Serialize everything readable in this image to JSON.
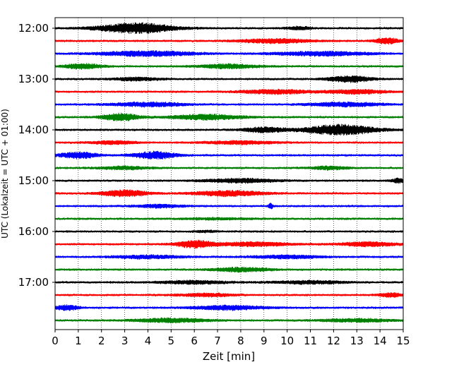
{
  "chart_data": {
    "type": "line",
    "xlabel": "Zeit  [min]",
    "ylabel": "UTC (Lokalzeit = UTC + 01:00)",
    "xlim": [
      0,
      15
    ],
    "x_ticks": [
      0,
      1,
      2,
      3,
      4,
      5,
      6,
      7,
      8,
      9,
      10,
      11,
      12,
      13,
      14,
      15
    ],
    "x_tick_labels": [
      "0",
      "1",
      "2",
      "3",
      "4",
      "5",
      "6",
      "7",
      "8",
      "9",
      "10",
      "11",
      "12",
      "13",
      "14",
      "15"
    ],
    "y_tick_labels": [
      "12:00",
      "13:00",
      "14:00",
      "15:00",
      "16:00",
      "17:00"
    ],
    "y_tick_rows": [
      0,
      4,
      8,
      12,
      16,
      20
    ],
    "grid": "vertical dotted",
    "color_cycle": [
      "#000000",
      "#ff0000",
      "#0000ff",
      "#008000"
    ],
    "traces": [
      {
        "start": "12:00",
        "color": "#000000",
        "bursts": [
          [
            3.5,
            1.6,
            1.0
          ],
          [
            10.5,
            0.5,
            0.3
          ]
        ]
      },
      {
        "start": "12:15",
        "color": "#ff0000",
        "bursts": [
          [
            9.5,
            1.5,
            0.4
          ],
          [
            14.3,
            0.5,
            0.6
          ]
        ]
      },
      {
        "start": "12:30",
        "color": "#0000ff",
        "bursts": [
          [
            4.0,
            2.0,
            0.5
          ],
          [
            11.5,
            2.0,
            0.4
          ]
        ]
      },
      {
        "start": "12:45",
        "color": "#008000",
        "bursts": [
          [
            1.2,
            0.8,
            0.5
          ],
          [
            7.5,
            1.2,
            0.4
          ]
        ]
      },
      {
        "start": "13:00",
        "color": "#000000",
        "bursts": [
          [
            12.7,
            0.9,
            0.6
          ],
          [
            3.5,
            1.0,
            0.3
          ]
        ]
      },
      {
        "start": "13:15",
        "color": "#ff0000",
        "bursts": [
          [
            9.5,
            1.5,
            0.4
          ],
          [
            13.0,
            1.2,
            0.4
          ]
        ]
      },
      {
        "start": "13:30",
        "color": "#0000ff",
        "bursts": [
          [
            4.0,
            1.5,
            0.4
          ],
          [
            12.5,
            1.5,
            0.4
          ]
        ]
      },
      {
        "start": "13:45",
        "color": "#008000",
        "bursts": [
          [
            2.8,
            0.8,
            0.7
          ],
          [
            6.5,
            1.5,
            0.5
          ]
        ]
      },
      {
        "start": "14:00",
        "color": "#000000",
        "bursts": [
          [
            12.3,
            1.5,
            1.0
          ],
          [
            9.0,
            0.9,
            0.5
          ]
        ]
      },
      {
        "start": "14:15",
        "color": "#ff0000",
        "bursts": [
          [
            2.5,
            1.0,
            0.3
          ],
          [
            8.0,
            1.5,
            0.3
          ]
        ]
      },
      {
        "start": "14:30",
        "color": "#0000ff",
        "bursts": [
          [
            1.0,
            0.8,
            0.6
          ],
          [
            4.3,
            0.9,
            0.7
          ]
        ]
      },
      {
        "start": "14:45",
        "color": "#008000",
        "bursts": [
          [
            3.0,
            1.0,
            0.3
          ],
          [
            11.8,
            0.8,
            0.3
          ]
        ]
      },
      {
        "start": "15:00",
        "color": "#000000",
        "bursts": [
          [
            8.0,
            1.5,
            0.4
          ],
          [
            14.8,
            0.3,
            0.4
          ]
        ]
      },
      {
        "start": "15:15",
        "color": "#ff0000",
        "bursts": [
          [
            3.0,
            1.0,
            0.6
          ],
          [
            7.5,
            1.5,
            0.5
          ]
        ]
      },
      {
        "start": "15:30",
        "color": "#0000ff",
        "bursts": [
          [
            4.5,
            1.0,
            0.3
          ],
          [
            9.3,
            0.1,
            0.5
          ]
        ]
      },
      {
        "start": "15:45",
        "color": "#008000",
        "bursts": [
          [
            7.0,
            1.5,
            0.15
          ]
        ]
      },
      {
        "start": "16:00",
        "color": "#000000",
        "bursts": [
          [
            6.5,
            0.5,
            0.15
          ]
        ]
      },
      {
        "start": "16:15",
        "color": "#ff0000",
        "bursts": [
          [
            6.0,
            0.8,
            0.7
          ],
          [
            8.5,
            1.5,
            0.4
          ],
          [
            13.5,
            1.2,
            0.4
          ]
        ]
      },
      {
        "start": "16:30",
        "color": "#0000ff",
        "bursts": [
          [
            4.0,
            1.5,
            0.3
          ],
          [
            10.0,
            1.5,
            0.3
          ]
        ]
      },
      {
        "start": "16:45",
        "color": "#008000",
        "bursts": [
          [
            8.0,
            1.2,
            0.4
          ]
        ]
      },
      {
        "start": "17:00",
        "color": "#000000",
        "bursts": [
          [
            6.0,
            1.5,
            0.3
          ],
          [
            11.0,
            1.5,
            0.3
          ]
        ]
      },
      {
        "start": "17:15",
        "color": "#ff0000",
        "bursts": [
          [
            6.5,
            1.2,
            0.3
          ],
          [
            14.5,
            0.5,
            0.4
          ]
        ]
      },
      {
        "start": "17:30",
        "color": "#0000ff",
        "bursts": [
          [
            0.5,
            0.5,
            0.5
          ],
          [
            7.5,
            1.5,
            0.4
          ]
        ]
      },
      {
        "start": "17:45",
        "color": "#008000",
        "bursts": [
          [
            5.0,
            1.5,
            0.4
          ],
          [
            13.0,
            1.5,
            0.3
          ]
        ]
      }
    ]
  }
}
